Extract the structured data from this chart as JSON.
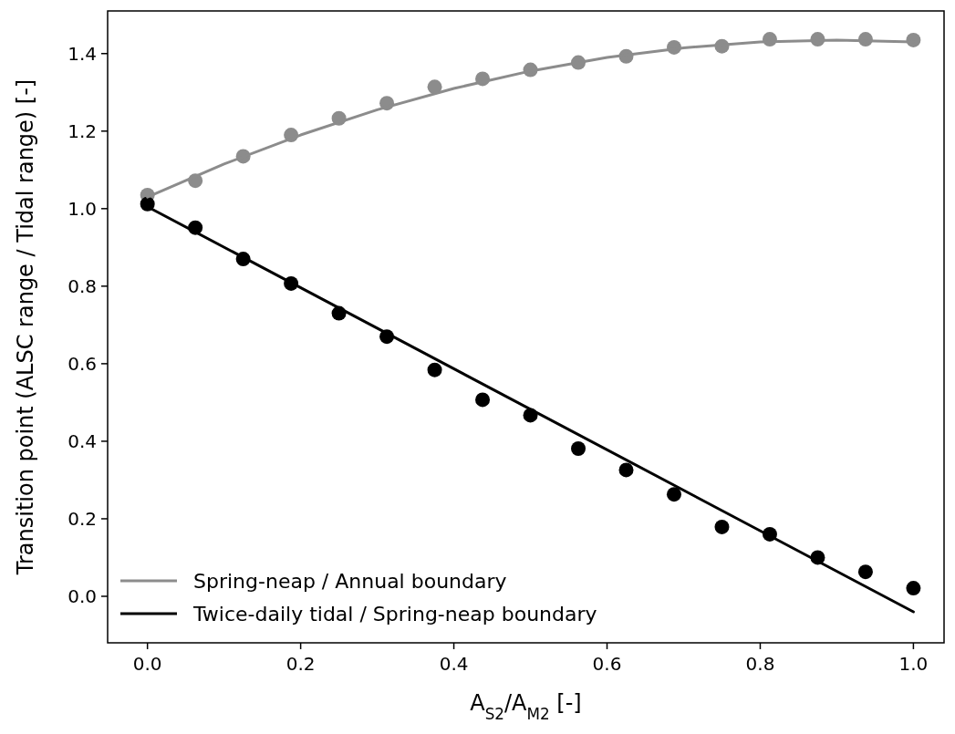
{
  "chart_data": {
    "type": "line",
    "xlabel": "A$_{S2}$/A$_{M2}$ [-]",
    "ylabel": "Transition point (ALSC range / Tidal range) [-]",
    "xlim": [
      -0.052,
      1.04
    ],
    "ylim": [
      -0.12,
      1.51
    ],
    "xticks": [
      {
        "value": 0,
        "label": "0.0"
      },
      0.2,
      0.4,
      0.6,
      0.8,
      {
        "value": 1,
        "label": "1.0"
      }
    ],
    "yticks": [
      {
        "value": 0,
        "label": "0.0"
      },
      0.2,
      0.4,
      0.6,
      0.8,
      {
        "value": 1,
        "label": "1.0"
      },
      1.2,
      1.4
    ],
    "grid": false,
    "legend": "bottom left",
    "series": [
      {
        "type": "scatter",
        "color": "#8c8c8c",
        "marker": "circle",
        "x": [
          0,
          0.0625,
          0.125,
          0.1875,
          0.25,
          0.3125,
          0.375,
          0.4375,
          0.5,
          0.5625,
          0.625,
          0.6875,
          0.75,
          0.8125,
          0.875,
          0.9375,
          1.0
        ],
        "values": [
          1.035,
          1.072,
          1.135,
          1.19,
          1.233,
          1.272,
          1.314,
          1.335,
          1.358,
          1.377,
          1.393,
          1.416,
          1.419,
          1.437,
          1.437,
          1.437,
          1.435
        ]
      },
      {
        "type": "scatter",
        "color": "#000000",
        "marker": "circle",
        "x": [
          0,
          0.0625,
          0.125,
          0.1875,
          0.25,
          0.3125,
          0.375,
          0.4375,
          0.5,
          0.5625,
          0.625,
          0.6875,
          0.75,
          0.8125,
          0.875,
          0.9375,
          1.0
        ],
        "values": [
          1.012,
          0.951,
          0.87,
          0.807,
          0.73,
          0.67,
          0.584,
          0.507,
          0.467,
          0.381,
          0.326,
          0.263,
          0.179,
          0.16,
          0.1,
          0.063,
          0.021
        ]
      },
      {
        "name": "Spring-neap / Annual boundary",
        "color": "#8c8c8c",
        "x": [
          0,
          0.1,
          0.2,
          0.3,
          0.4,
          0.5,
          0.6,
          0.7,
          0.8,
          0.9,
          1.0
        ],
        "values": [
          1.03,
          1.115,
          1.19,
          1.255,
          1.31,
          1.355,
          1.39,
          1.415,
          1.43,
          1.435,
          1.43
        ]
      },
      {
        "name": "Twice-daily tidal / Spring-neap boundary",
        "color": "#000000",
        "x": [
          0,
          1.0
        ],
        "values": [
          1.005,
          -0.04
        ]
      }
    ]
  }
}
